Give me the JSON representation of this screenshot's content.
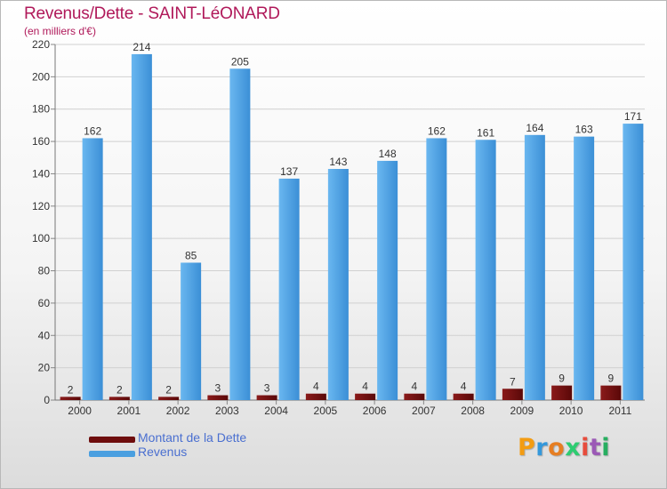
{
  "title": "Revenus/Dette - SAINT-LéONARD",
  "subtitle": "(en milliers d'€)",
  "legend": [
    {
      "label": "Montant de la Dette",
      "color": "#6e0d0d"
    },
    {
      "label": "Revenus",
      "color": "#4a9fe0"
    }
  ],
  "logo": {
    "letters": [
      "P",
      "r",
      "o",
      "x",
      "i",
      "t",
      "i"
    ],
    "colors": [
      "#f39c12",
      "#3498db",
      "#e67e22",
      "#2ecc71",
      "#e74c3c",
      "#9b59b6",
      "#27ae60"
    ]
  },
  "chart_data": {
    "type": "bar",
    "categories": [
      "2000",
      "2001",
      "2002",
      "2003",
      "2004",
      "2005",
      "2006",
      "2007",
      "2008",
      "2009",
      "2010",
      "2011"
    ],
    "series": [
      {
        "name": "Montant de la Dette",
        "color": "#6e0d0d",
        "values": [
          2,
          2,
          2,
          3,
          3,
          4,
          4,
          4,
          4,
          7,
          9,
          9
        ]
      },
      {
        "name": "Revenus",
        "color": "#4a9fe0",
        "values": [
          162,
          214,
          85,
          205,
          137,
          143,
          148,
          162,
          161,
          164,
          163,
          171
        ]
      }
    ],
    "ylim": [
      0,
      220
    ],
    "yticks": [
      0,
      20,
      40,
      60,
      80,
      100,
      120,
      140,
      160,
      180,
      200,
      220
    ],
    "grid": true,
    "legend_position": "bottom-left"
  }
}
